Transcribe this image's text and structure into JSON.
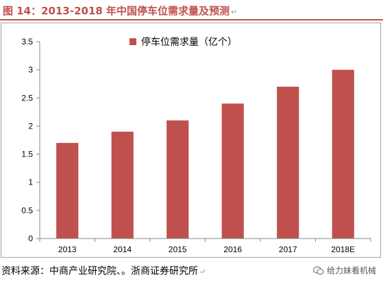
{
  "figure": {
    "title": "图 14：2013-2018 年中国停车位需求量及预测",
    "return_mark": "↵"
  },
  "chart_data": {
    "type": "bar",
    "categories": [
      "2013",
      "2014",
      "2015",
      "2016",
      "2017",
      "2018E"
    ],
    "series": [
      {
        "name": "停车位需求量（亿个）",
        "values": [
          1.7,
          1.9,
          2.1,
          2.4,
          2.7,
          3.0
        ]
      }
    ],
    "ylim": [
      0,
      3.5
    ],
    "yticks": [
      "0",
      "0.5",
      "1",
      "1.5",
      "2",
      "2.5",
      "3",
      "3.5"
    ],
    "legend_position": "top-center",
    "grid": false,
    "colors": {
      "bar": "#c0504d"
    }
  },
  "footer": {
    "source": "资料来源：中商产业研究院、。浙商证券研究所",
    "return_mark": "↵",
    "watermark": "给力妹看机械"
  }
}
